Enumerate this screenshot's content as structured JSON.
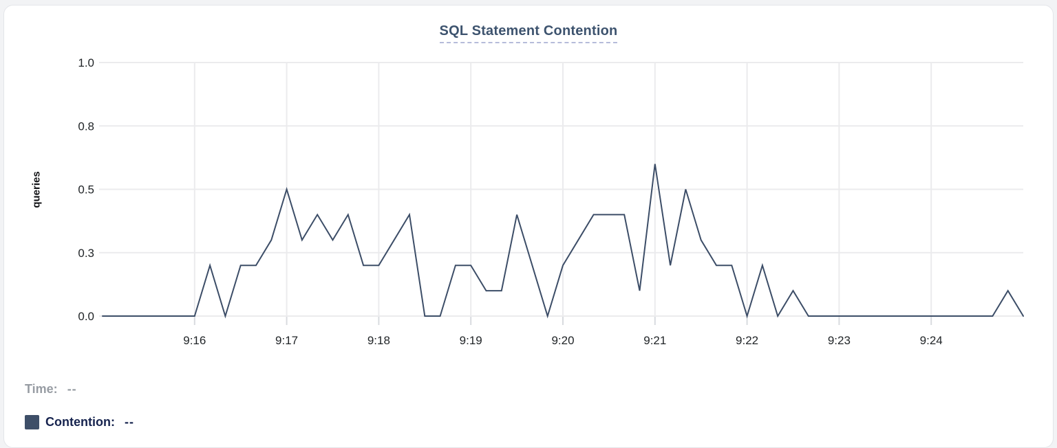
{
  "chart": {
    "title": "SQL Statement Contention",
    "ylabel": "queries"
  },
  "legend": {
    "time_label": "Time:",
    "time_value": "--",
    "contention_label": "Contention:",
    "contention_value": "--"
  },
  "colors": {
    "series_line": "#3C4D67",
    "legend_swatch": "#3E4F68",
    "title_text": "#3D536E",
    "title_underline": "#B5BBDA",
    "grid_line": "#EBEBED",
    "tick_mark": "#D8DBDF",
    "axis_text": "#1F2326",
    "muted_text": "#979CA3",
    "legend_text": "#16234E"
  },
  "chart_data": {
    "type": "line",
    "title": "SQL Statement Contention",
    "xlabel": "",
    "ylabel": "queries",
    "ylim": [
      0,
      1
    ],
    "x_range": [
      "9:15:00",
      "9:25:00"
    ],
    "interval_seconds": 10,
    "grid": true,
    "legend_position": "bottom-left",
    "y_ticks": [
      {
        "value": 0.0,
        "label": "0.0"
      },
      {
        "value": 0.25,
        "label": "0.3"
      },
      {
        "value": 0.5,
        "label": "0.5"
      },
      {
        "value": 0.75,
        "label": "0.8"
      },
      {
        "value": 1.0,
        "label": "1.0"
      }
    ],
    "x_ticks": [
      {
        "time": "9:16:00",
        "label": "9:16"
      },
      {
        "time": "9:17:00",
        "label": "9:17"
      },
      {
        "time": "9:18:00",
        "label": "9:18"
      },
      {
        "time": "9:19:00",
        "label": "9:19"
      },
      {
        "time": "9:20:00",
        "label": "9:20"
      },
      {
        "time": "9:21:00",
        "label": "9:21"
      },
      {
        "time": "9:22:00",
        "label": "9:22"
      },
      {
        "time": "9:23:00",
        "label": "9:23"
      },
      {
        "time": "9:24:00",
        "label": "9:24"
      }
    ],
    "series": [
      {
        "name": "Contention",
        "unit": "queries",
        "color": "#3C4D67",
        "times": [
          "9:15:00",
          "9:15:10",
          "9:15:20",
          "9:15:30",
          "9:15:40",
          "9:15:50",
          "9:16:00",
          "9:16:10",
          "9:16:20",
          "9:16:30",
          "9:16:40",
          "9:16:50",
          "9:17:00",
          "9:17:10",
          "9:17:20",
          "9:17:30",
          "9:17:40",
          "9:17:50",
          "9:18:00",
          "9:18:10",
          "9:18:20",
          "9:18:30",
          "9:18:40",
          "9:18:50",
          "9:19:00",
          "9:19:10",
          "9:19:20",
          "9:19:30",
          "9:19:40",
          "9:19:50",
          "9:20:00",
          "9:20:10",
          "9:20:20",
          "9:20:30",
          "9:20:40",
          "9:20:50",
          "9:21:00",
          "9:21:10",
          "9:21:20",
          "9:21:30",
          "9:21:40",
          "9:21:50",
          "9:22:00",
          "9:22:10",
          "9:22:20",
          "9:22:30",
          "9:22:40",
          "9:22:50",
          "9:23:00",
          "9:23:10",
          "9:23:20",
          "9:23:30",
          "9:23:40",
          "9:23:50",
          "9:24:00",
          "9:24:10",
          "9:24:20",
          "9:24:30",
          "9:24:40",
          "9:24:50",
          "9:25:00"
        ],
        "values": [
          0,
          0,
          0,
          0,
          0,
          0,
          0,
          0.2,
          0,
          0.2,
          0.2,
          0.3,
          0.5,
          0.3,
          0.4,
          0.3,
          0.4,
          0.2,
          0.2,
          0.3,
          0.4,
          0,
          0,
          0.2,
          0.2,
          0.1,
          0.1,
          0.4,
          0.2,
          0,
          0.2,
          0.3,
          0.4,
          0.4,
          0.4,
          0.1,
          0.6,
          0.2,
          0.5,
          0.3,
          0.2,
          0.2,
          0,
          0.2,
          0,
          0.1,
          0,
          0,
          0,
          0,
          0,
          0,
          0,
          0,
          0,
          0,
          0,
          0,
          0,
          0.1,
          0
        ]
      }
    ]
  }
}
